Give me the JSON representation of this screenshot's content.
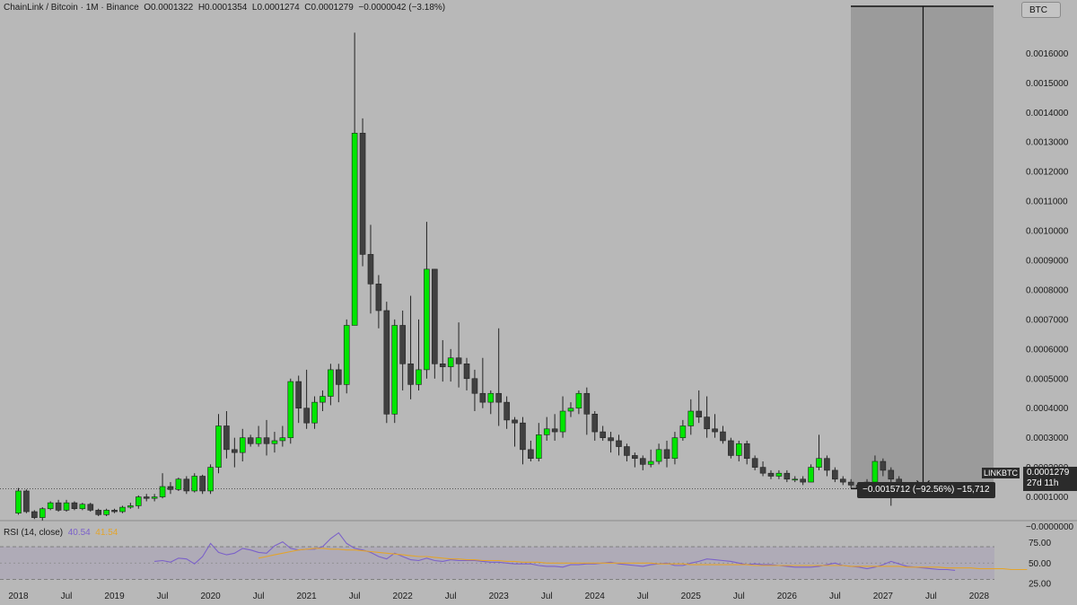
{
  "header": {
    "symbol": "ChainLink / Bitcoin · 1M · Binance",
    "open_label": "O",
    "open": "0.0001322",
    "high_label": "H",
    "high": "0.0001354",
    "low_label": "L",
    "low": "0.0001274",
    "close_label": "C",
    "close": "0.0001279",
    "change": "−0.0000042 (−3.18%)"
  },
  "currency_button": "BTC",
  "symbol_tag": "LINKBTC",
  "price_tag": {
    "price": "0.0001279",
    "countdown": "27d 11h"
  },
  "measure_label": "−0.0015712 (−92.56%) −15,712",
  "rsi": {
    "label": "RSI (14, close)",
    "value": "40.54",
    "ma_value": "41.54"
  },
  "colors": {
    "background": "#b8b8b8",
    "bull": "#00e600",
    "bear": "#404040",
    "rsi_line": "#7b61c9",
    "rsi_ma": "#e3a42c",
    "measure_box": "#959595"
  },
  "chart_data": [
    {
      "type": "candlestick",
      "title": "ChainLink / Bitcoin · 1M · Binance",
      "ylim": [
        -3e-05,
        0.00168
      ],
      "y_ticks": [
        "0.0016000",
        "0.0015000",
        "0.0014000",
        "0.0013000",
        "0.0012000",
        "0.0011000",
        "0.0010000",
        "0.0009000",
        "0.0008000",
        "0.0007000",
        "0.0006000",
        "0.0005000",
        "0.0004000",
        "0.0003000",
        "0.0002000",
        "0.0001000",
        "−0.0000000"
      ],
      "x_ticks": [
        {
          "label": "2018",
          "m": 0
        },
        {
          "label": "Jul",
          "m": 6
        },
        {
          "label": "2019",
          "m": 12
        },
        {
          "label": "Jul",
          "m": 18
        },
        {
          "label": "2020",
          "m": 24
        },
        {
          "label": "Jul",
          "m": 30
        },
        {
          "label": "2021",
          "m": 36
        },
        {
          "label": "Jul",
          "m": 42
        },
        {
          "label": "2022",
          "m": 48
        },
        {
          "label": "Jul",
          "m": 54
        },
        {
          "label": "2023",
          "m": 60
        },
        {
          "label": "Jul",
          "m": 66
        },
        {
          "label": "2024",
          "m": 72
        },
        {
          "label": "Jul",
          "m": 78
        },
        {
          "label": "2025",
          "m": 84
        },
        {
          "label": "Jul",
          "m": 90
        },
        {
          "label": "2026",
          "m": 96
        },
        {
          "label": "Jul",
          "m": 102
        },
        {
          "label": "2027",
          "m": 108
        },
        {
          "label": "Jul",
          "m": 114
        },
        {
          "label": "2028",
          "m": 120
        }
      ],
      "x_start": "2017-10",
      "candles": [
        [
          4.5e-05,
          0.00012,
          0.00013,
          4e-05
        ],
        [
          0.00012,
          5e-05,
          0.000125,
          4.5e-05
        ],
        [
          5e-05,
          3e-05,
          5.5e-05,
          2.5e-05
        ],
        [
          3e-05,
          6e-05,
          6.5e-05,
          2e-05
        ],
        [
          6e-05,
          8e-05,
          8.5e-05,
          5.5e-05
        ],
        [
          8e-05,
          5.5e-05,
          9e-05,
          5e-05
        ],
        [
          5.5e-05,
          8e-05,
          9e-05,
          5e-05
        ],
        [
          8e-05,
          6e-05,
          8.5e-05,
          5.5e-05
        ],
        [
          6e-05,
          7.5e-05,
          8e-05,
          5.5e-05
        ],
        [
          7.5e-05,
          5.5e-05,
          8e-05,
          5e-05
        ],
        [
          5.5e-05,
          4e-05,
          6e-05,
          3.5e-05
        ],
        [
          4e-05,
          5.5e-05,
          6e-05,
          3.5e-05
        ],
        [
          5.5e-05,
          5e-05,
          6e-05,
          4.5e-05
        ],
        [
          5e-05,
          6.5e-05,
          7e-05,
          4.5e-05
        ],
        [
          6.5e-05,
          7e-05,
          8e-05,
          6e-05
        ],
        [
          7e-05,
          0.0001,
          0.000105,
          6e-05
        ],
        [
          0.0001,
          9.5e-05,
          0.00011,
          8.5e-05
        ],
        [
          9.5e-05,
          0.0001,
          0.00011,
          8.5e-05
        ],
        [
          0.0001,
          0.000135,
          0.00018,
          9.5e-05
        ],
        [
          0.000135,
          0.000125,
          0.00015,
          0.00011
        ],
        [
          0.000125,
          0.00016,
          0.000165,
          0.00012
        ],
        [
          0.00016,
          0.00012,
          0.00017,
          0.00011
        ],
        [
          0.00012,
          0.00017,
          0.00018,
          0.000115
        ],
        [
          0.00017,
          0.00012,
          0.000175,
          0.00011
        ],
        [
          0.00012,
          0.0002,
          0.00021,
          0.00011
        ],
        [
          0.0002,
          0.00034,
          0.00038,
          0.00018
        ],
        [
          0.00034,
          0.00026,
          0.00039,
          0.00023
        ],
        [
          0.00026,
          0.00025,
          0.0003,
          0.0002
        ],
        [
          0.00025,
          0.0003,
          0.00033,
          0.00022
        ],
        [
          0.0003,
          0.00028,
          0.00031,
          0.00027
        ],
        [
          0.00028,
          0.0003,
          0.00034,
          0.00027
        ],
        [
          0.0003,
          0.00028,
          0.00036,
          0.00024
        ],
        [
          0.00028,
          0.00029,
          0.00032,
          0.00025
        ],
        [
          0.00029,
          0.0003,
          0.00034,
          0.00027
        ],
        [
          0.0003,
          0.00049,
          0.0005,
          0.00028
        ],
        [
          0.00049,
          0.0004,
          0.00051,
          0.00035
        ],
        [
          0.0004,
          0.00035,
          0.00053,
          0.00033
        ],
        [
          0.00035,
          0.00042,
          0.00044,
          0.00033
        ],
        [
          0.00042,
          0.00044,
          0.00046,
          0.00039
        ],
        [
          0.00044,
          0.00053,
          0.00055,
          0.00041
        ],
        [
          0.00053,
          0.00048,
          0.00055,
          0.00042
        ],
        [
          0.00048,
          0.00068,
          0.0007,
          0.00045
        ],
        [
          0.00068,
          0.00133,
          0.00167,
          0.00068
        ],
        [
          0.00133,
          0.00092,
          0.00138,
          0.00088
        ],
        [
          0.00092,
          0.00082,
          0.00102,
          0.00072
        ],
        [
          0.00082,
          0.00073,
          0.00085,
          0.00067
        ],
        [
          0.00073,
          0.00038,
          0.00076,
          0.00035
        ],
        [
          0.00038,
          0.00068,
          0.0007,
          0.00035
        ],
        [
          0.00068,
          0.00055,
          0.00073,
          0.00046
        ],
        [
          0.00055,
          0.00048,
          0.00078,
          0.00043
        ],
        [
          0.00048,
          0.00053,
          0.0007,
          0.00046
        ],
        [
          0.00053,
          0.00087,
          0.00103,
          0.0005
        ],
        [
          0.00087,
          0.00055,
          0.00087,
          0.0005
        ],
        [
          0.00055,
          0.00054,
          0.00063,
          0.00049
        ],
        [
          0.00054,
          0.00057,
          0.0006,
          0.00049
        ],
        [
          0.00057,
          0.00055,
          0.00069,
          0.00047
        ],
        [
          0.00055,
          0.0005,
          0.00057,
          0.00046
        ],
        [
          0.0005,
          0.00045,
          0.00053,
          0.00039
        ],
        [
          0.00045,
          0.00042,
          0.00057,
          0.0004
        ],
        [
          0.00042,
          0.00045,
          0.00046,
          0.00038
        ],
        [
          0.00045,
          0.00042,
          0.00067,
          0.00034
        ],
        [
          0.00042,
          0.00036,
          0.00044,
          0.00033
        ],
        [
          0.00036,
          0.00035,
          0.00037,
          0.00027
        ],
        [
          0.00035,
          0.00026,
          0.00037,
          0.00021
        ],
        [
          0.00026,
          0.00023,
          0.00029,
          0.00022
        ],
        [
          0.00023,
          0.00031,
          0.00035,
          0.00022
        ],
        [
          0.00031,
          0.00033,
          0.00037,
          0.00029
        ],
        [
          0.00033,
          0.00032,
          0.00038,
          0.00029
        ],
        [
          0.00032,
          0.00039,
          0.00044,
          0.0003
        ],
        [
          0.00039,
          0.0004,
          0.00042,
          0.00037
        ],
        [
          0.0004,
          0.00045,
          0.00046,
          0.00038
        ],
        [
          0.00045,
          0.00038,
          0.00047,
          0.00031
        ],
        [
          0.00038,
          0.00032,
          0.00039,
          0.00029
        ],
        [
          0.00032,
          0.0003,
          0.00034,
          0.00029
        ],
        [
          0.0003,
          0.00029,
          0.00032,
          0.00025
        ],
        [
          0.00029,
          0.00027,
          0.00031,
          0.00024
        ],
        [
          0.00027,
          0.00024,
          0.00028,
          0.00022
        ],
        [
          0.00024,
          0.00023,
          0.00025,
          0.0002
        ],
        [
          0.00023,
          0.00021,
          0.00024,
          0.00019
        ],
        [
          0.00021,
          0.00022,
          0.00026,
          0.0002
        ],
        [
          0.00022,
          0.00026,
          0.00028,
          0.00021
        ],
        [
          0.00026,
          0.00023,
          0.00029,
          0.0002
        ],
        [
          0.00023,
          0.0003,
          0.00032,
          0.00021
        ],
        [
          0.0003,
          0.00034,
          0.00036,
          0.00029
        ],
        [
          0.00034,
          0.00039,
          0.00043,
          0.00031
        ],
        [
          0.00039,
          0.00037,
          0.00046,
          0.00035
        ],
        [
          0.00037,
          0.00033,
          0.00044,
          0.0003
        ],
        [
          0.00033,
          0.00032,
          0.00038,
          0.0003
        ],
        [
          0.00032,
          0.00029,
          0.00034,
          0.00028
        ],
        [
          0.00029,
          0.00024,
          0.0003,
          0.00023
        ],
        [
          0.00024,
          0.00028,
          0.00029,
          0.00022
        ],
        [
          0.00028,
          0.00023,
          0.00029,
          0.00021
        ],
        [
          0.00023,
          0.0002,
          0.00024,
          0.00019
        ],
        [
          0.0002,
          0.00018,
          0.00022,
          0.00017
        ],
        [
          0.00018,
          0.00017,
          0.00019,
          0.00016
        ],
        [
          0.00017,
          0.00018,
          0.00019,
          0.00016
        ],
        [
          0.00018,
          0.00016,
          0.00019,
          0.00015
        ],
        [
          0.00016,
          0.00016,
          0.00017,
          0.00015
        ],
        [
          0.00016,
          0.00015,
          0.00017,
          0.00014
        ],
        [
          0.00015,
          0.0002,
          0.00021,
          0.00015
        ],
        [
          0.0002,
          0.00023,
          0.00031,
          0.00019
        ],
        [
          0.00023,
          0.00019,
          0.00024,
          0.00017
        ],
        [
          0.00019,
          0.00016,
          0.0002,
          0.00015
        ],
        [
          0.00016,
          0.00015,
          0.00017,
          0.00014
        ],
        [
          0.00015,
          0.00014,
          0.00016,
          0.00013
        ],
        [
          0.00014,
          0.00013,
          0.00015,
          0.00011
        ],
        [
          0.00013,
          0.00015,
          0.00016,
          0.00012
        ],
        [
          0.00015,
          0.00022,
          0.00024,
          0.00014
        ],
        [
          0.00022,
          0.00019,
          0.00023,
          0.00017
        ],
        [
          0.00019,
          0.00016,
          0.0002,
          7e-05
        ],
        [
          0.00016,
          0.00014,
          0.00017,
          0.00013
        ],
        [
          0.00014,
          0.00014,
          0.00015,
          0.00013
        ],
        [
          0.00014,
          0.00013,
          0.00014,
          0.00012
        ],
        [
          0.00013,
          0.000135,
          0.00014,
          0.000125
        ],
        [
          0.0001322,
          0.0001279,
          0.0001354,
          0.0001274
        ]
      ],
      "last_price": 0.0001279,
      "measurement": {
        "from_price": 0.00168,
        "to_price": 0.0001279,
        "start_m": 108,
        "end_m": 123
      }
    },
    {
      "type": "line",
      "title": "RSI (14, close)",
      "ylim": [
        21,
        93
      ],
      "y_ticks": [
        "75.00",
        "50.00",
        "25.00"
      ],
      "band": [
        30,
        70
      ],
      "series": [
        {
          "name": "RSI",
          "x_start_m": 17,
          "values": [
            52,
            53,
            51,
            56,
            55,
            49,
            58,
            74,
            63,
            60,
            62,
            68,
            66,
            63,
            62,
            71,
            76,
            68,
            66,
            67,
            67,
            70,
            80,
            87,
            74,
            68,
            66,
            63,
            58,
            55,
            62,
            58,
            54,
            53,
            56,
            53,
            52,
            54,
            53,
            53,
            53,
            52,
            51,
            51,
            50,
            49,
            49,
            49,
            47,
            46,
            46,
            45,
            48,
            48,
            49,
            49,
            50,
            51,
            49,
            48,
            47,
            46,
            48,
            49,
            50,
            47,
            47,
            50,
            52,
            55,
            54,
            53,
            52,
            50,
            48,
            49,
            48,
            48,
            47,
            46,
            45,
            45,
            45,
            46,
            48,
            50,
            47,
            46,
            45,
            43,
            45,
            48,
            52,
            49,
            46,
            45,
            44,
            43,
            42,
            42,
            41
          ]
        },
        {
          "name": "RSI-based MA",
          "x_start_m": 30,
          "values": [
            56,
            58,
            60,
            62,
            64,
            66,
            67,
            68,
            68,
            67,
            67,
            66,
            66,
            65,
            64,
            63,
            62,
            61,
            60,
            59,
            58,
            58,
            57,
            56,
            55,
            55,
            54,
            54,
            53,
            53,
            53,
            52,
            52,
            51,
            51,
            51,
            50,
            50,
            50,
            50,
            50,
            50,
            50,
            50,
            50,
            50,
            50,
            50,
            50,
            50,
            49,
            49,
            49,
            49,
            48,
            48,
            48,
            48,
            48,
            48,
            48,
            48,
            47,
            47,
            47,
            47,
            47,
            47,
            47,
            47,
            47,
            47,
            47,
            47,
            46,
            46,
            46,
            46,
            46,
            46,
            46,
            45,
            45,
            45,
            45,
            45,
            44,
            44,
            44,
            44,
            43,
            43,
            43,
            43,
            42,
            42,
            42
          ]
        }
      ]
    }
  ]
}
